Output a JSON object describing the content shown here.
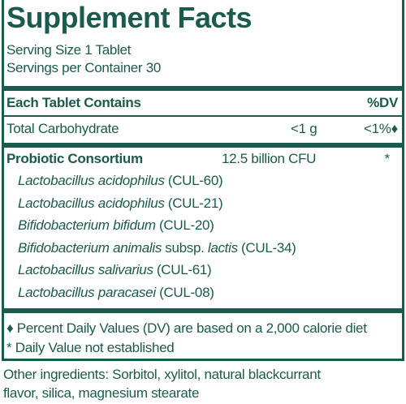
{
  "header": {
    "title": "Supplement Facts",
    "serving_size": "Serving Size 1 Tablet",
    "servings_per_container": "Servings per Container 30"
  },
  "table": {
    "header": [
      "Each Tablet Contains",
      "%DV"
    ],
    "rows": [
      [
        "Total Carbohydrate",
        "<1 g",
        "<1%♦"
      ],
      [
        "Probiotic Consortium",
        "12.5 billion CFU",
        "*"
      ]
    ],
    "strains": [
      [
        {
          "text": "Lactobacillus acidophilus",
          "italic": true
        },
        {
          "text": "(CUL-60)"
        }
      ],
      [
        {
          "text": "Lactobacillus acidophilus",
          "italic": true
        },
        {
          "text": "(CUL-21)"
        }
      ],
      [
        {
          "text": "Bifidobacterium bifidum",
          "italic": true
        },
        {
          "text": "(CUL-20)"
        }
      ],
      [
        {
          "text": "Bifidobacterium animalis",
          "italic": true
        },
        {
          "text": "subsp."
        },
        {
          "text": "lactis",
          "italic": true
        },
        {
          "text": "(CUL-34)"
        }
      ],
      [
        {
          "text": "Lactobacillus salivarius",
          "italic": true
        },
        {
          "text": "(CUL-61)"
        }
      ],
      [
        {
          "text": "Lactobacillus paracasei",
          "italic": true
        },
        {
          "text": "(CUL-08)"
        }
      ]
    ]
  },
  "footnotes": [
    "♦ Percent Daily Values (DV) are based on a 2,000 calorie diet",
    "* Daily Value not established"
  ],
  "other_ingredients": [
    "Other ingredients: Sorbitol, xylitol, natural blackcurrant",
    "flavor, silica, magnesium stearate"
  ]
}
